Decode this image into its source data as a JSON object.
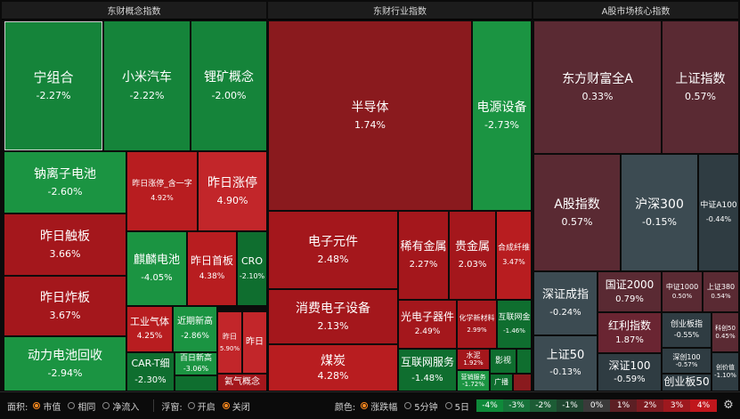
{
  "panels": [
    {
      "title": "东财概念指数"
    },
    {
      "title": "东财行业指数"
    },
    {
      "title": "A股市场核心指数"
    }
  ],
  "tiles": [
    {
      "name": "宁组合",
      "value": "-2.27%"
    },
    {
      "name": "小米汽车",
      "value": "-2.22%"
    },
    {
      "name": "锂矿概念",
      "value": "-2.00%"
    },
    {
      "name": "钠离子电池",
      "value": "-2.60%"
    },
    {
      "name": "昨日涨停_含一字",
      "value": "4.92%"
    },
    {
      "name": "昨日涨停",
      "value": "4.90%"
    },
    {
      "name": "昨日触板",
      "value": "3.66%"
    },
    {
      "name": "麒麟电池",
      "value": "-4.05%"
    },
    {
      "name": "昨日首板",
      "value": "4.38%"
    },
    {
      "name": "CRO",
      "value": "-2.10%"
    },
    {
      "name": "昨日炸板",
      "value": "3.67%"
    },
    {
      "name": "工业气体",
      "value": "4.25%"
    },
    {
      "name": "近期新高",
      "value": "-2.86%"
    },
    {
      "name": "昨日",
      "value": "5.90%"
    },
    {
      "name": "昨日",
      "value": ""
    },
    {
      "name": "动力电池回收",
      "value": "-2.94%"
    },
    {
      "name": "CAR-T细",
      "value": "-2.30%"
    },
    {
      "name": "百日新高",
      "value": "-3.06%"
    },
    {
      "name": "氦气概念",
      "value": ""
    },
    {
      "name": "半导体",
      "value": "1.74%"
    },
    {
      "name": "电源设备",
      "value": "-2.73%"
    },
    {
      "name": "电子元件",
      "value": "2.48%"
    },
    {
      "name": "稀有金属",
      "value": "2.27%"
    },
    {
      "name": "贵金属",
      "value": "2.03%"
    },
    {
      "name": "合成纤维",
      "value": "3.47%"
    },
    {
      "name": "消费电子设备",
      "value": "2.13%"
    },
    {
      "name": "光电子器件",
      "value": "2.49%"
    },
    {
      "name": "化学新材料",
      "value": "2.99%"
    },
    {
      "name": "互联网金",
      "value": "-1.46%"
    },
    {
      "name": "煤炭",
      "value": "4.28%"
    },
    {
      "name": "互联网服务",
      "value": "-1.48%"
    },
    {
      "name": "水泥",
      "value": "1.92%"
    },
    {
      "name": "影视",
      "value": ""
    },
    {
      "name": "营销服务",
      "value": "-1.72%"
    },
    {
      "name": "广播",
      "value": ""
    },
    {
      "name": "东方财富全A",
      "value": "0.33%"
    },
    {
      "name": "上证指数",
      "value": "0.57%"
    },
    {
      "name": "A股指数",
      "value": "0.57%"
    },
    {
      "name": "沪深300",
      "value": "-0.15%"
    },
    {
      "name": "中证A100",
      "value": "-0.44%"
    },
    {
      "name": "深证成指",
      "value": "-0.24%"
    },
    {
      "name": "国证2000",
      "value": "0.79%"
    },
    {
      "name": "中证1000",
      "value": "0.50%"
    },
    {
      "name": "上证380",
      "value": "0.54%"
    },
    {
      "name": "红利指数",
      "value": "1.87%"
    },
    {
      "name": "科创50",
      "value": "0.45%"
    },
    {
      "name": "上证50",
      "value": "-0.13%"
    },
    {
      "name": "深证100",
      "value": "-0.59%"
    },
    {
      "name": "创业板指",
      "value": "-0.55%"
    },
    {
      "name": "深创100",
      "value": "-0.57%"
    },
    {
      "name": "创价值",
      "value": "-1.10%"
    },
    {
      "name": "创业板50",
      "value": ""
    }
  ],
  "bottom": {
    "area_label": "面积:",
    "area_options": [
      "市值",
      "相同",
      "净流入"
    ],
    "float_label": "浮窗:",
    "float_options": [
      "开启",
      "关闭"
    ],
    "color_label": "颜色:",
    "color_options": [
      "涨跌幅",
      "5分钟",
      "5日"
    ],
    "legend": [
      "-4%",
      "-3%",
      "-2%",
      "-1%",
      "0%",
      "1%",
      "2%",
      "3%",
      "4%"
    ],
    "legend_colors": [
      "#0f8a3a",
      "#16733a",
      "#1c5c35",
      "#1f4630",
      "#3a3a3a",
      "#5c1f24",
      "#7d1b21",
      "#9e181e",
      "#c0161c"
    ]
  }
}
